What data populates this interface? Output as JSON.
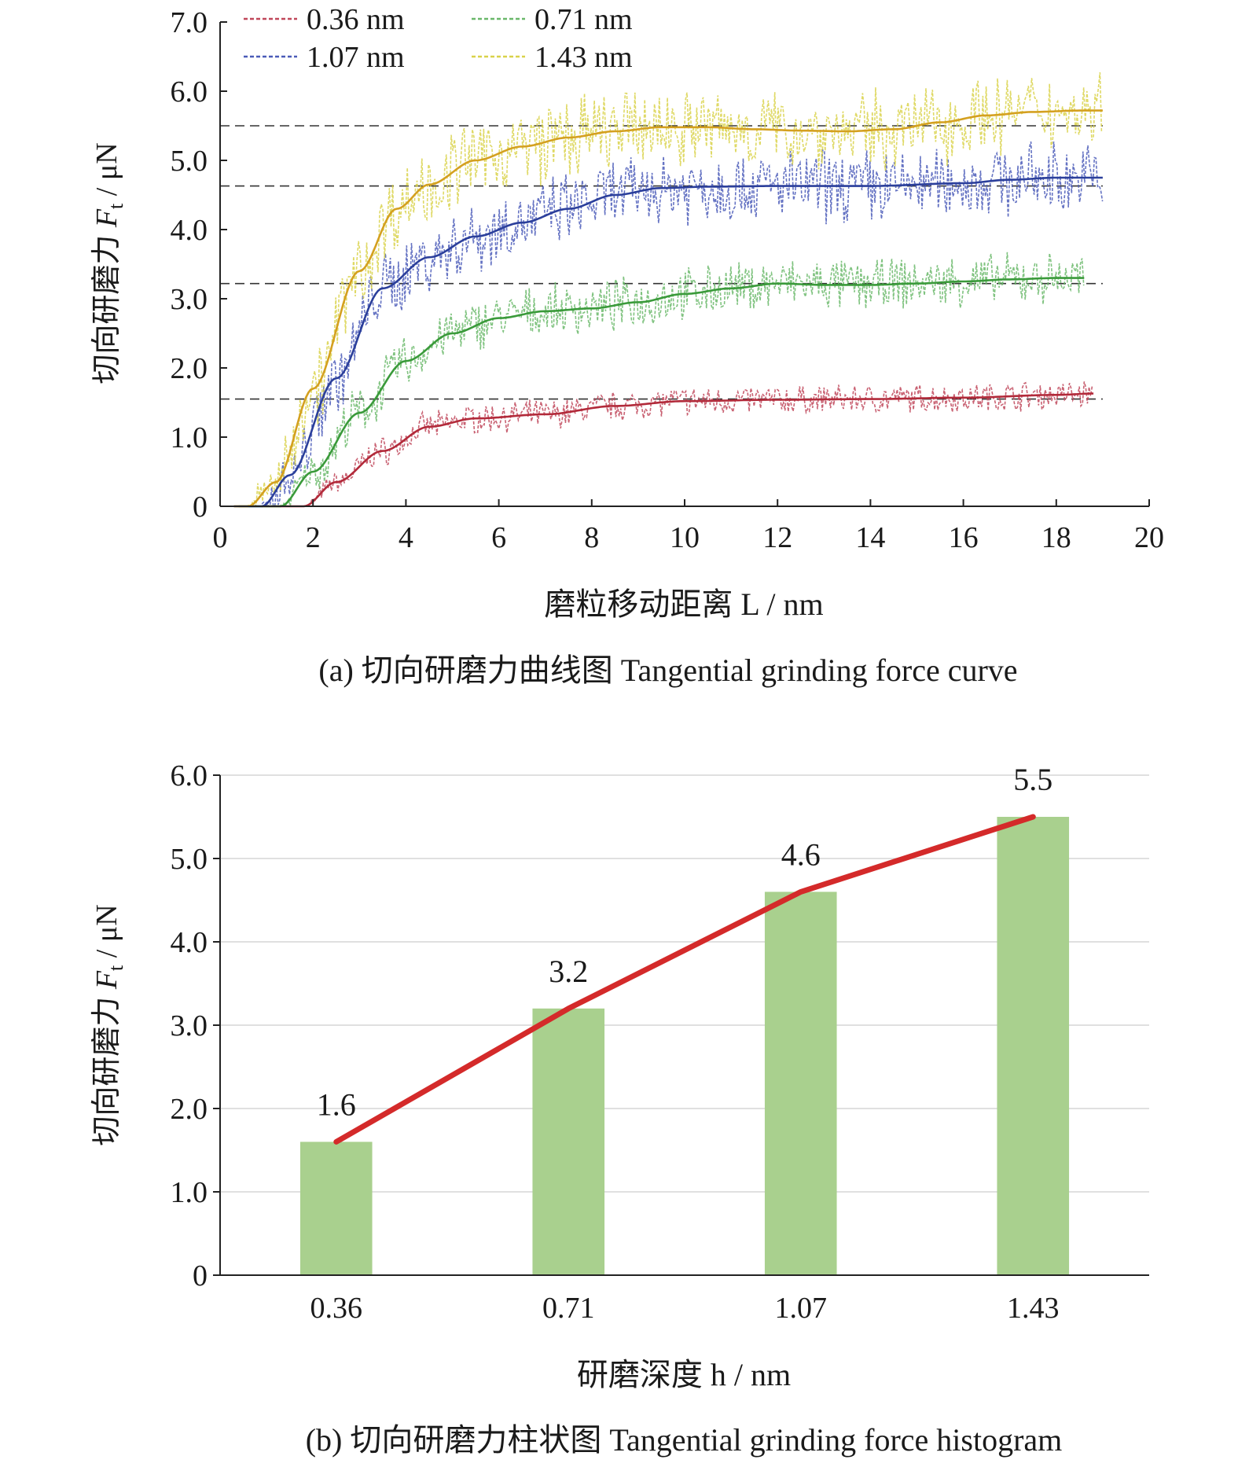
{
  "chart_data": [
    {
      "type": "line",
      "caption": "(a) 切向研磨力曲线图 Tangential grinding force curve",
      "xlabel": "磨粒移动距离 L /  nm",
      "ylabel": "切向研磨力 Ft / μN",
      "xlim": [
        0,
        20
      ],
      "ylim": [
        0,
        7.0
      ],
      "x_ticks": [
        "0",
        "2",
        "4",
        "6",
        "8",
        "10",
        "12",
        "14",
        "16",
        "18",
        "20"
      ],
      "y_ticks": [
        "0",
        "1.0",
        "2.0",
        "3.0",
        "4.0",
        "5.0",
        "6.0",
        "7.0"
      ],
      "grid": false,
      "legend_position": "top-left",
      "reference_lines": [
        1.55,
        3.22,
        4.63,
        5.5
      ],
      "series": [
        {
          "name": "0.36 nm",
          "color": "#b22a3a",
          "raw_color": "#c0475a",
          "noise_amplitude": 0.18,
          "smooth": {
            "x": [
              1.8,
              2.5,
              3.5,
              4.5,
              5.5,
              7,
              8.5,
              10,
              12,
              14,
              16,
              18,
              18.8
            ],
            "y": [
              0,
              0.35,
              0.8,
              1.15,
              1.27,
              1.33,
              1.45,
              1.52,
              1.54,
              1.55,
              1.57,
              1.61,
              1.63
            ]
          }
        },
        {
          "name": "0.71 nm",
          "color": "#3a9a3a",
          "raw_color": "#6ab86a",
          "noise_amplitude": 0.32,
          "smooth": {
            "x": [
              1.3,
              2,
              3,
              4,
              5,
              6,
              7,
              8,
              9,
              10,
              11,
              12,
              13,
              14,
              15,
              16,
              17,
              18,
              18.6
            ],
            "y": [
              0,
              0.5,
              1.35,
              2.1,
              2.5,
              2.72,
              2.82,
              2.86,
              2.95,
              3.07,
              3.15,
              3.22,
              3.2,
              3.2,
              3.22,
              3.25,
              3.28,
              3.3,
              3.3
            ]
          }
        },
        {
          "name": "1.07 nm",
          "color": "#2b3f9b",
          "raw_color": "#4a5bb8",
          "noise_amplitude": 0.45,
          "smooth": {
            "x": [
              0.9,
              1.5,
              2.5,
              3.5,
              4.5,
              5.5,
              6.5,
              7.5,
              8.5,
              9.5,
              10.5,
              12,
              14,
              16,
              17,
              18,
              19
            ],
            "y": [
              0,
              0.45,
              1.85,
              3.15,
              3.6,
              3.9,
              4.1,
              4.3,
              4.5,
              4.6,
              4.62,
              4.63,
              4.63,
              4.67,
              4.72,
              4.75,
              4.75
            ]
          }
        },
        {
          "name": "1.43 nm",
          "color": "#d4a020",
          "raw_color": "#d9d24a",
          "noise_amplitude": 0.5,
          "smooth": {
            "x": [
              0.6,
              1.2,
              2,
              3,
              3.8,
              4.5,
              5.5,
              6.5,
              7.5,
              8.5,
              9.5,
              10.5,
              11.5,
              12.5,
              13.5,
              14.5,
              15.5,
              16.5,
              17.5,
              18.5,
              19
            ],
            "y": [
              0,
              0.35,
              1.7,
              3.4,
              4.3,
              4.65,
              5.0,
              5.2,
              5.33,
              5.42,
              5.48,
              5.48,
              5.45,
              5.43,
              5.42,
              5.45,
              5.55,
              5.65,
              5.7,
              5.72,
              5.72
            ]
          }
        }
      ]
    },
    {
      "type": "bar",
      "caption": "(b) 切向研磨力柱状图 Tangential grinding force histogram",
      "xlabel": "研磨深度 h /  nm",
      "ylabel": "切向研磨力 Ft / μN",
      "categories": [
        "0.36",
        "0.71",
        "1.07",
        "1.43"
      ],
      "values": [
        1.6,
        3.2,
        4.6,
        5.5
      ],
      "data_labels": [
        "1.6",
        "3.2",
        "4.6",
        "5.5"
      ],
      "ylim": [
        0,
        6.0
      ],
      "y_ticks": [
        "0",
        "1.0",
        "2.0",
        "3.0",
        "4.0",
        "5.0",
        "6.0"
      ],
      "grid": true,
      "bar_color": "#a9d08e",
      "line_color": "#d42a2a"
    }
  ]
}
